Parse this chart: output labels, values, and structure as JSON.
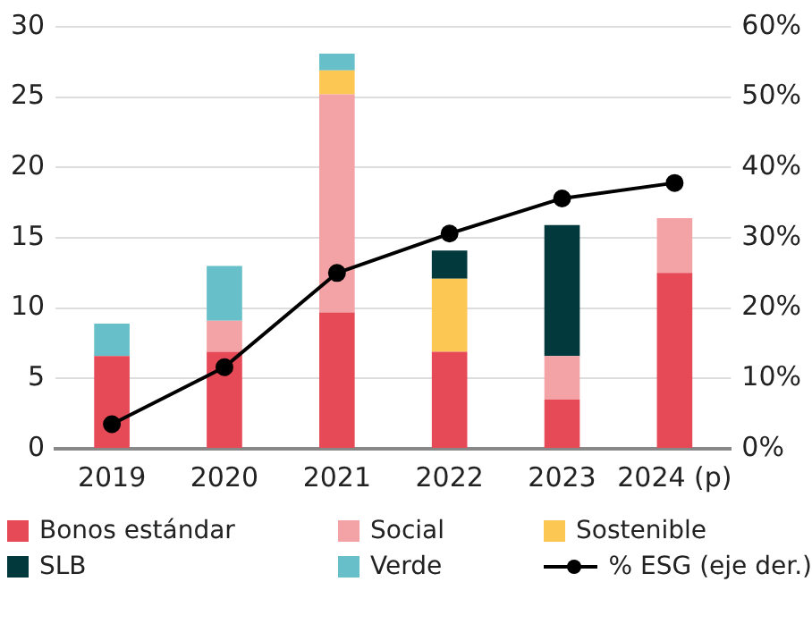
{
  "chart_data": {
    "type": "bar",
    "stacked": true,
    "categories": [
      "2019",
      "2020",
      "2021",
      "2022",
      "2023",
      "2024 (p)"
    ],
    "series": [
      {
        "name": "Bonos estándar",
        "color": "#e64a57",
        "values": [
          6.6,
          6.9,
          9.7,
          6.9,
          3.5,
          12.5
        ]
      },
      {
        "name": "Social",
        "color": "#f3a3a5",
        "values": [
          null,
          2.2,
          15.5,
          null,
          3.1,
          3.9
        ]
      },
      {
        "name": "Sostenible",
        "color": "#fcc752",
        "values": [
          null,
          null,
          1.7,
          5.2,
          null,
          null
        ]
      },
      {
        "name": "SLB",
        "color": "#02393d",
        "values": [
          null,
          null,
          null,
          2.0,
          9.3,
          null
        ]
      },
      {
        "name": "Verde",
        "color": "#67bfca",
        "values": [
          2.3,
          3.9,
          1.2,
          null,
          null,
          null
        ]
      },
      {
        "name": "% ESG (eje der.)",
        "color": "#000000",
        "type": "line",
        "axis": "y2",
        "marker": "circle",
        "values": [
          3.5,
          11.6,
          25.0,
          30.6,
          35.6,
          37.8
        ]
      }
    ],
    "ylim": [
      0,
      30
    ],
    "yticks": [
      0,
      5,
      10,
      15,
      20,
      25,
      30
    ],
    "y2lim": [
      0,
      60
    ],
    "y2ticks": [
      {
        "value": 0,
        "label": "0%"
      },
      {
        "value": 10,
        "label": "10%"
      },
      {
        "value": 20,
        "label": "20%"
      },
      {
        "value": 30,
        "label": "30%"
      },
      {
        "value": 40,
        "label": "40%"
      },
      {
        "value": 50,
        "label": "50%"
      },
      {
        "value": 60,
        "label": "60%"
      }
    ],
    "grid": "y",
    "legend": "bottom"
  }
}
